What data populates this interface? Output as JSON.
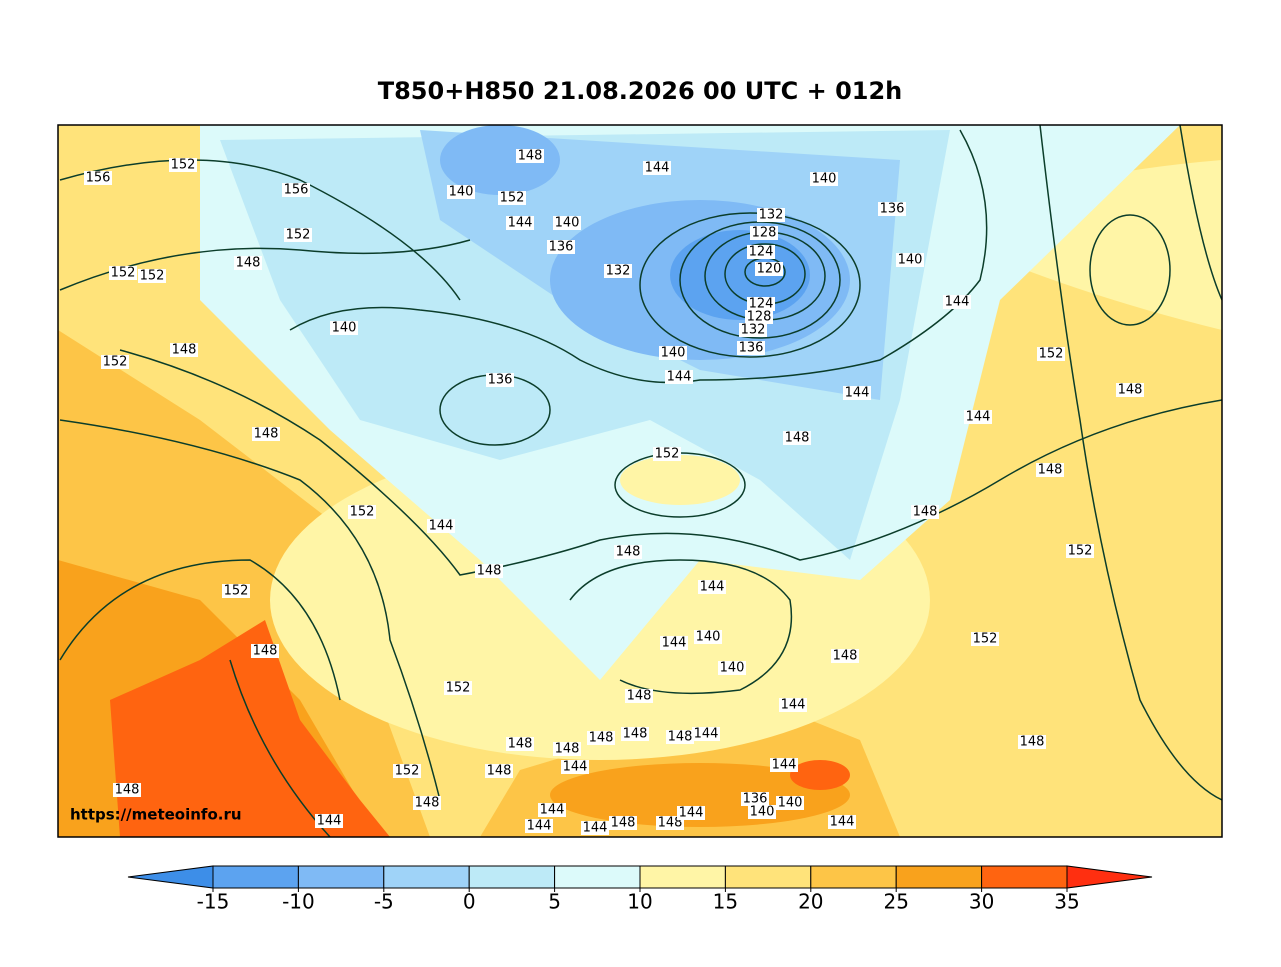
{
  "title": "T850+H850 21.08.2026 00 UTC + 012h",
  "watermark": "https://meteoinfo.ru",
  "contour_labels": [
    156,
    152,
    156,
    152,
    148,
    152,
    152,
    148,
    152,
    140,
    148,
    136,
    152,
    144,
    148,
    152,
    148,
    152,
    152,
    148,
    148,
    148,
    148,
    144,
    148,
    148,
    148,
    144,
    148,
    144,
    140,
    140,
    144,
    148,
    152,
    144,
    140,
    148,
    144,
    144,
    148,
    148,
    152,
    152,
    148,
    144,
    144,
    148,
    144,
    140,
    136,
    140,
    152,
    148,
    144,
    140,
    140,
    136,
    132,
    128,
    124,
    120,
    124,
    128,
    132,
    136,
    132,
    136,
    140,
    144,
    152,
    148,
    144,
    140,
    144,
    144,
    144,
    148,
    148,
    144,
    148,
    144
  ],
  "colorbar": {
    "ticks": [
      -15,
      -10,
      -5,
      0,
      5,
      10,
      15,
      20,
      25,
      30,
      35
    ],
    "colors": [
      "#3d8ee8",
      "#5ca3f0",
      "#7fbaf5",
      "#9fd3f8",
      "#bdeaf7",
      "#dcfafa",
      "#fff5a6",
      "#ffe37a",
      "#fdc547",
      "#f9a21c",
      "#ff6410",
      "#ff2f10"
    ]
  }
}
